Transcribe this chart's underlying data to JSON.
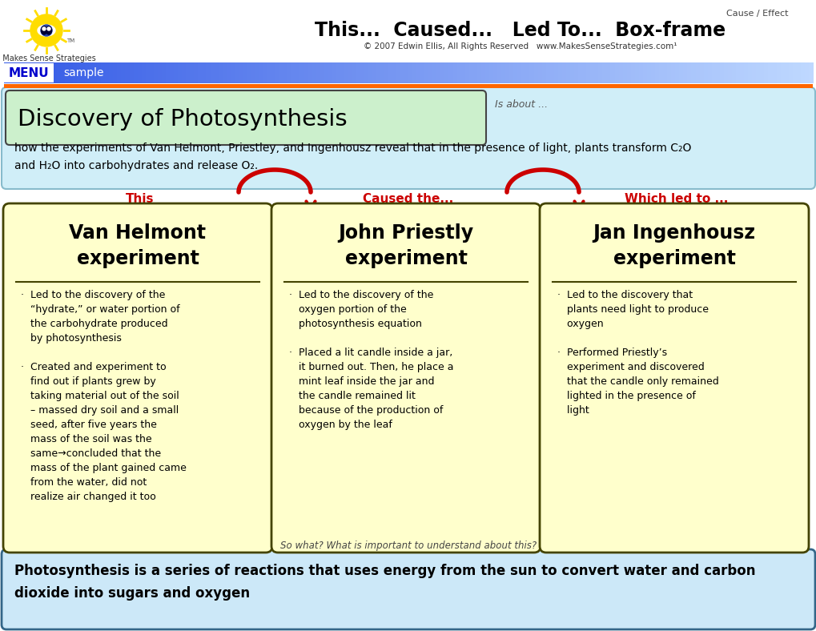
{
  "title": "This...  Caused...   Led To...  Box-frame",
  "subtitle": "© 2007 Edwin Ellis, All Rights Reserved   www.MakesSenseStrategies.com¹",
  "cause_effect_label": "Cause / Effect",
  "menu_text": "MENU",
  "sample_text": "sample",
  "topic_title": "Discovery of Photosynthesis",
  "is_about_label": "Is about ...",
  "topic_description": "how the experiments of Van Helmont, Priestley, and Ingenhousz reveal that in the presence of light, plants transform C₂O\nand H₂O into carbohydrates and release O₂.",
  "col_labels": [
    "This",
    "Caused the...",
    "Which led to ..."
  ],
  "box_titles": [
    "Van Helmont\nexperiment",
    "John Priestly\nexperiment",
    "Jan Ingenhousz\nexperiment"
  ],
  "box_details": [
    "·  Led to the discovery of the\n   “hydrate,” or water portion of\n   the carbohydrate produced\n   by photosynthesis\n\n·  Created and experiment to\n   find out if plants grew by\n   taking material out of the soil\n   – massed dry soil and a small\n   seed, after five years the\n   mass of the soil was the\n   same→concluded that the\n   mass of the plant gained came\n   from the water, did not\n   realize air changed it too",
    "·  Led to the discovery of the\n   oxygen portion of the\n   photosynthesis equation\n\n·  Placed a lit candle inside a jar,\n   it burned out. Then, he place a\n   mint leaf inside the jar and\n   the candle remained lit\n   because of the production of\n   oxygen by the leaf",
    "·  Led to the discovery that\n   plants need light to produce\n   oxygen\n\n·  Performed Priestly’s\n   experiment and discovered\n   that the candle only remained\n   lighted in the presence of\n   light"
  ],
  "so_what_label": "So what? What is important to understand about this?",
  "conclusion": "Photosynthesis is a series of reactions that uses energy from the sun to convert water and carbon\ndioxide into sugars and oxygen",
  "bg_color": "#ffffff",
  "menu_color": "#0000cc",
  "orange_bar_color": "#ff6600",
  "topic_box_color": "#ccf0cc",
  "topic_box_border": "#444444",
  "blue_area_color": "#d0eef8",
  "blue_area_border": "#88bbcc",
  "yellow_box_color": "#ffffcc",
  "yellow_box_border": "#444400",
  "col_label_color": "#cc0000",
  "arrow_color": "#cc0000",
  "conclusion_bg": "#cce8f8",
  "conclusion_border": "#336688"
}
